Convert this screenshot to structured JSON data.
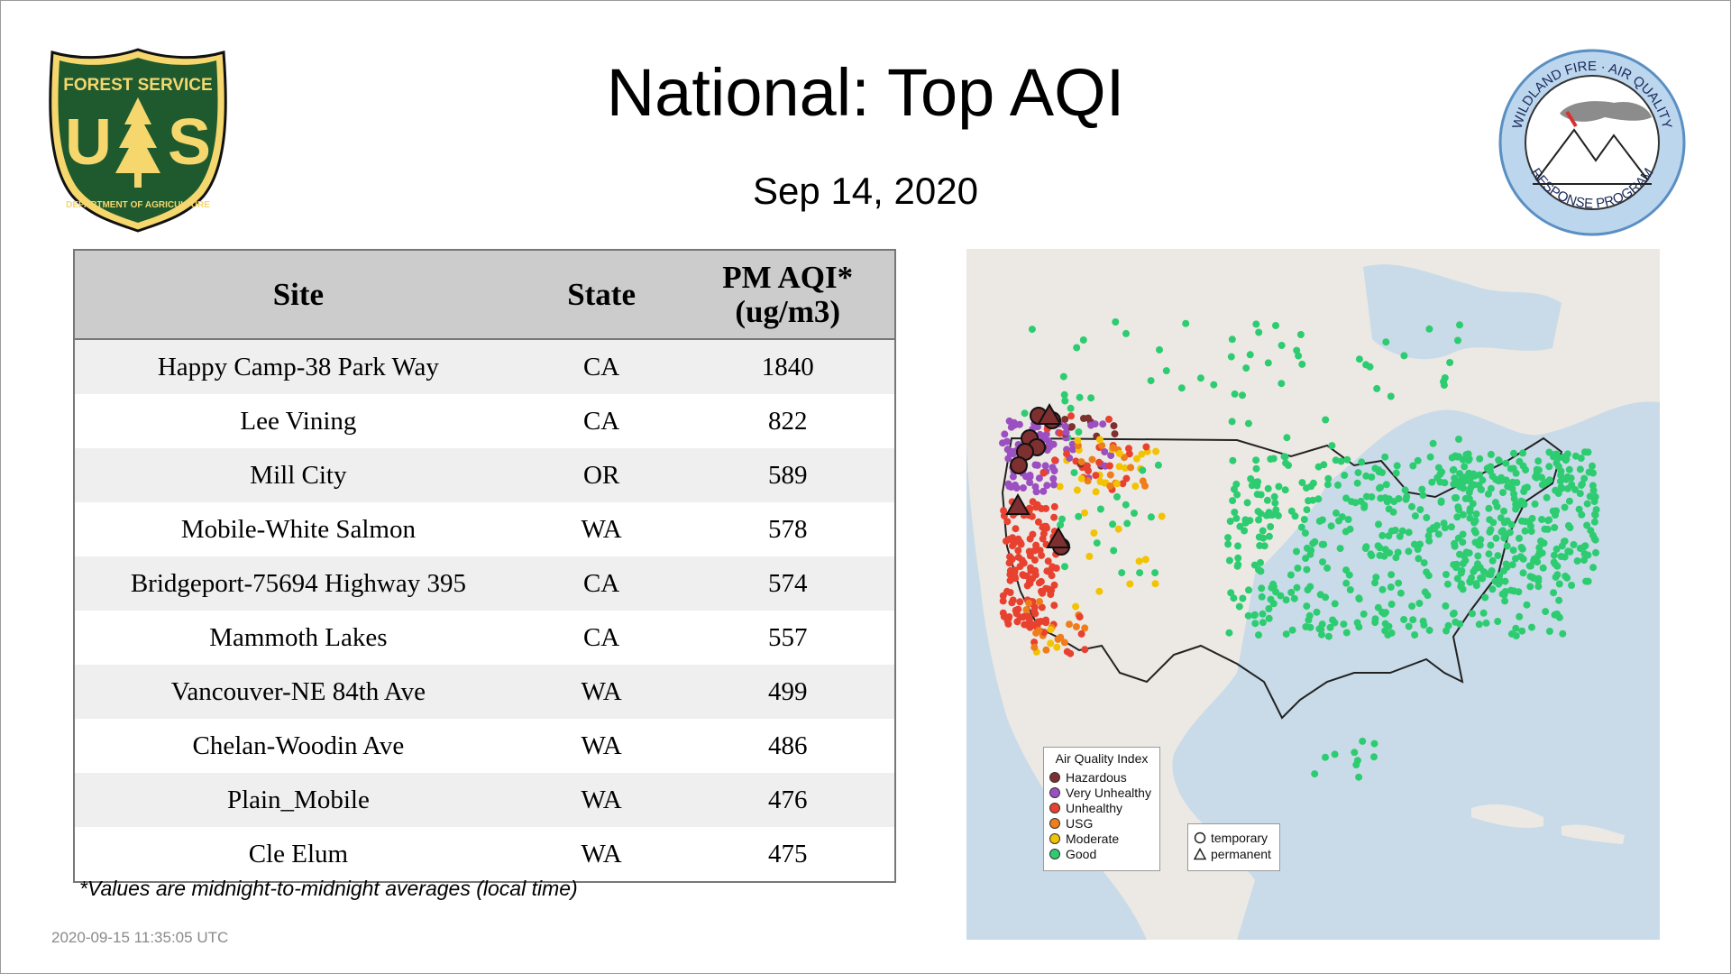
{
  "header": {
    "title": "National: Top AQI",
    "date": "Sep 14, 2020"
  },
  "logos": {
    "forest_service": {
      "top": "FOREST SERVICE",
      "initials_left": "U",
      "initials_right": "S",
      "bottom": "DEPARTMENT OF AGRICULTURE"
    },
    "wildland": {
      "ring_top": "WILDLAND FIRE · AIR QUALITY",
      "ring_bottom": "RESPONSE PROGRAM"
    }
  },
  "table": {
    "headers": {
      "site": "Site",
      "state": "State",
      "aqi_line1": "PM AQI*",
      "aqi_line2": "(ug/m3)"
    },
    "rows": [
      {
        "site": "Happy Camp-38 Park Way",
        "state": "CA",
        "aqi": "1840"
      },
      {
        "site": "Lee Vining",
        "state": "CA",
        "aqi": "822"
      },
      {
        "site": "Mill City",
        "state": "OR",
        "aqi": "589"
      },
      {
        "site": "Mobile-White Salmon",
        "state": "WA",
        "aqi": "578"
      },
      {
        "site": "Bridgeport-75694 Highway 395",
        "state": "CA",
        "aqi": "574"
      },
      {
        "site": "Mammoth Lakes",
        "state": "CA",
        "aqi": "557"
      },
      {
        "site": "Vancouver-NE 84th Ave",
        "state": "WA",
        "aqi": "499"
      },
      {
        "site": "Chelan-Woodin Ave",
        "state": "WA",
        "aqi": "486"
      },
      {
        "site": "Plain_Mobile",
        "state": "WA",
        "aqi": "476"
      },
      {
        "site": "Cle Elum",
        "state": "WA",
        "aqi": "475"
      }
    ]
  },
  "footnote": "*Values are midnight-to-midnight averages (local time)",
  "timestamp": "2020-09-15 11:35:05 UTC",
  "map": {
    "legend_title": "Air Quality Index",
    "categories": [
      {
        "label": "Hazardous",
        "color": "#7e2f2f"
      },
      {
        "label": "Very Unhealthy",
        "color": "#9b4fc0"
      },
      {
        "label": "Unhealthy",
        "color": "#e8412f"
      },
      {
        "label": "USG",
        "color": "#ef7d1a"
      },
      {
        "label": "Moderate",
        "color": "#f2c300"
      },
      {
        "label": "Good",
        "color": "#2ecc71"
      }
    ],
    "marker_types": {
      "temporary": "temporary",
      "permanent": "permanent"
    }
  }
}
